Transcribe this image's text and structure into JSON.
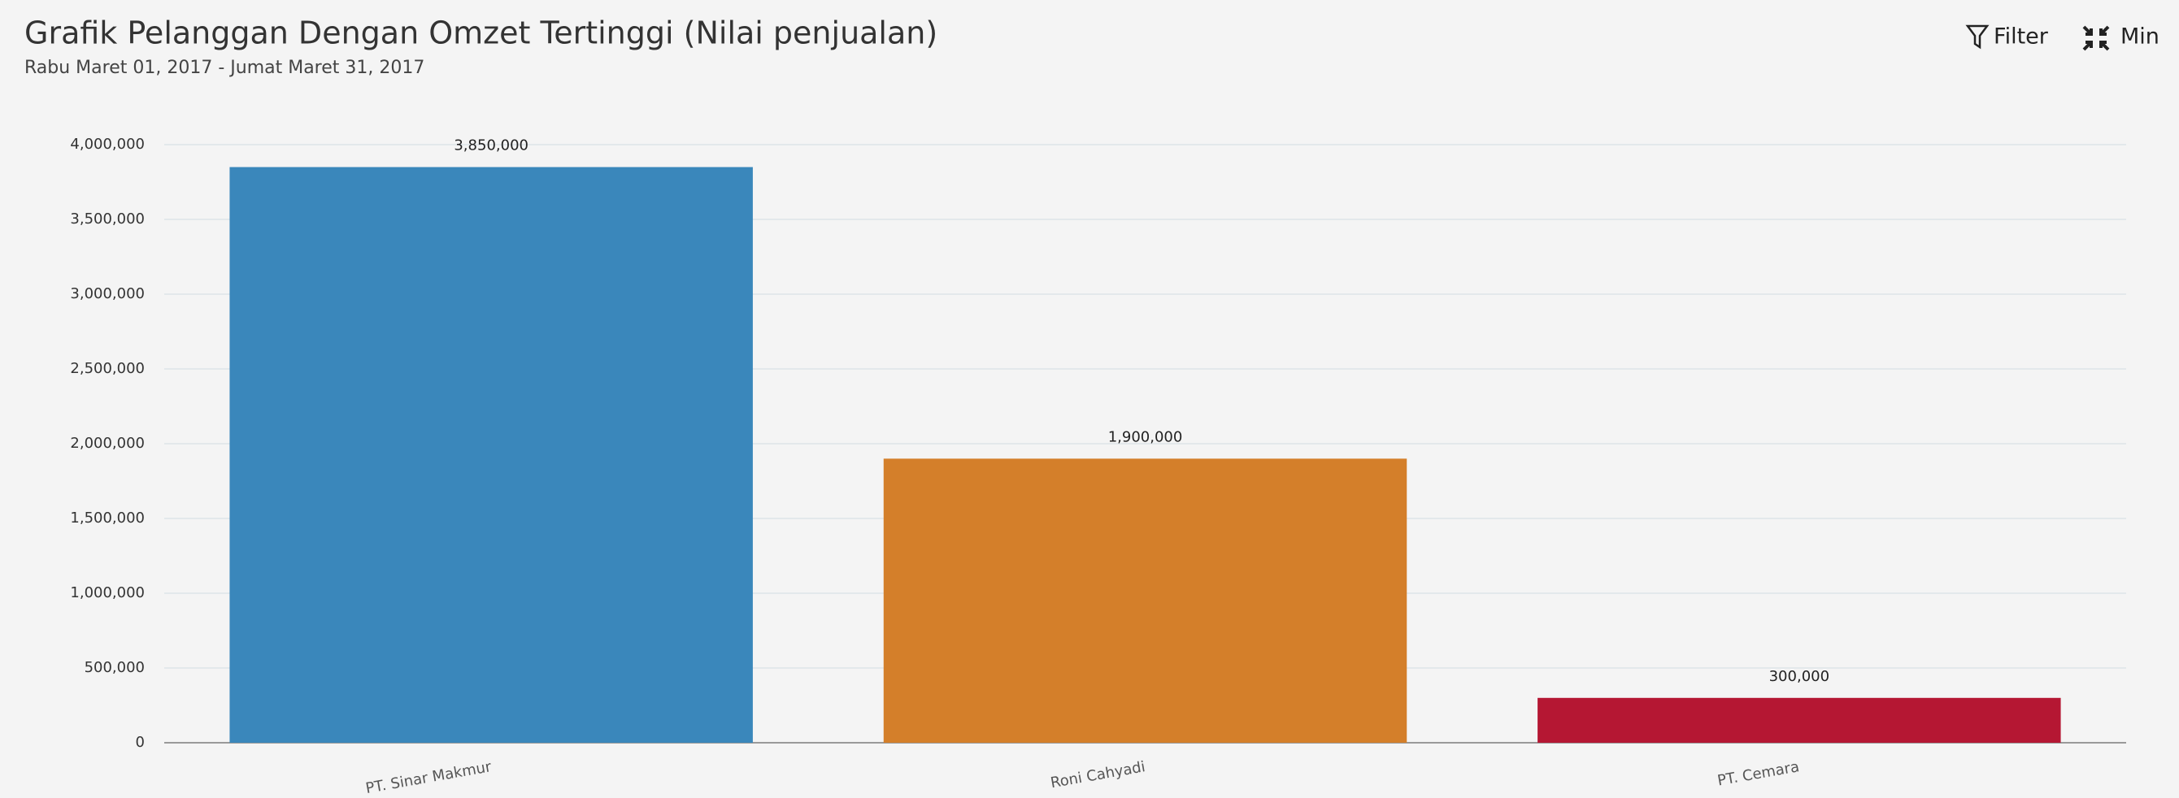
{
  "chart_data": {
    "type": "bar",
    "title": "Grafik Pelanggan Dengan Omzet Tertinggi (Nilai penjualan)",
    "subtitle": "Rabu Maret 01, 2017 - Jumat Maret 31, 2017",
    "categories": [
      "PT. Sinar Makmur",
      "Roni Cahyadi",
      "PT. Cemara"
    ],
    "values": [
      3850000,
      1900000,
      300000
    ],
    "value_labels": [
      "3,850,000",
      "1,900,000",
      "300,000"
    ],
    "colors": [
      "#3a87bb",
      "#d47f2a",
      "#b51733"
    ],
    "ylim": [
      0,
      4000000
    ],
    "yticks": [
      0,
      {
        "value": 500000,
        "label": "500,000"
      },
      {
        "value": 1000000,
        "label": "1,000,000"
      },
      {
        "value": 1500000,
        "label": "1,500,000"
      },
      {
        "value": 2000000,
        "label": "2,000,000"
      },
      {
        "value": 2500000,
        "label": "2,500,000"
      },
      {
        "value": 3000000,
        "label": "3,000,000"
      },
      {
        "value": 3500000,
        "label": "3,500,000"
      },
      {
        "value": 4000000,
        "label": "4,000,000"
      }
    ],
    "grid": true
  },
  "toolbar": {
    "filter": "Filter",
    "min": "Min"
  }
}
